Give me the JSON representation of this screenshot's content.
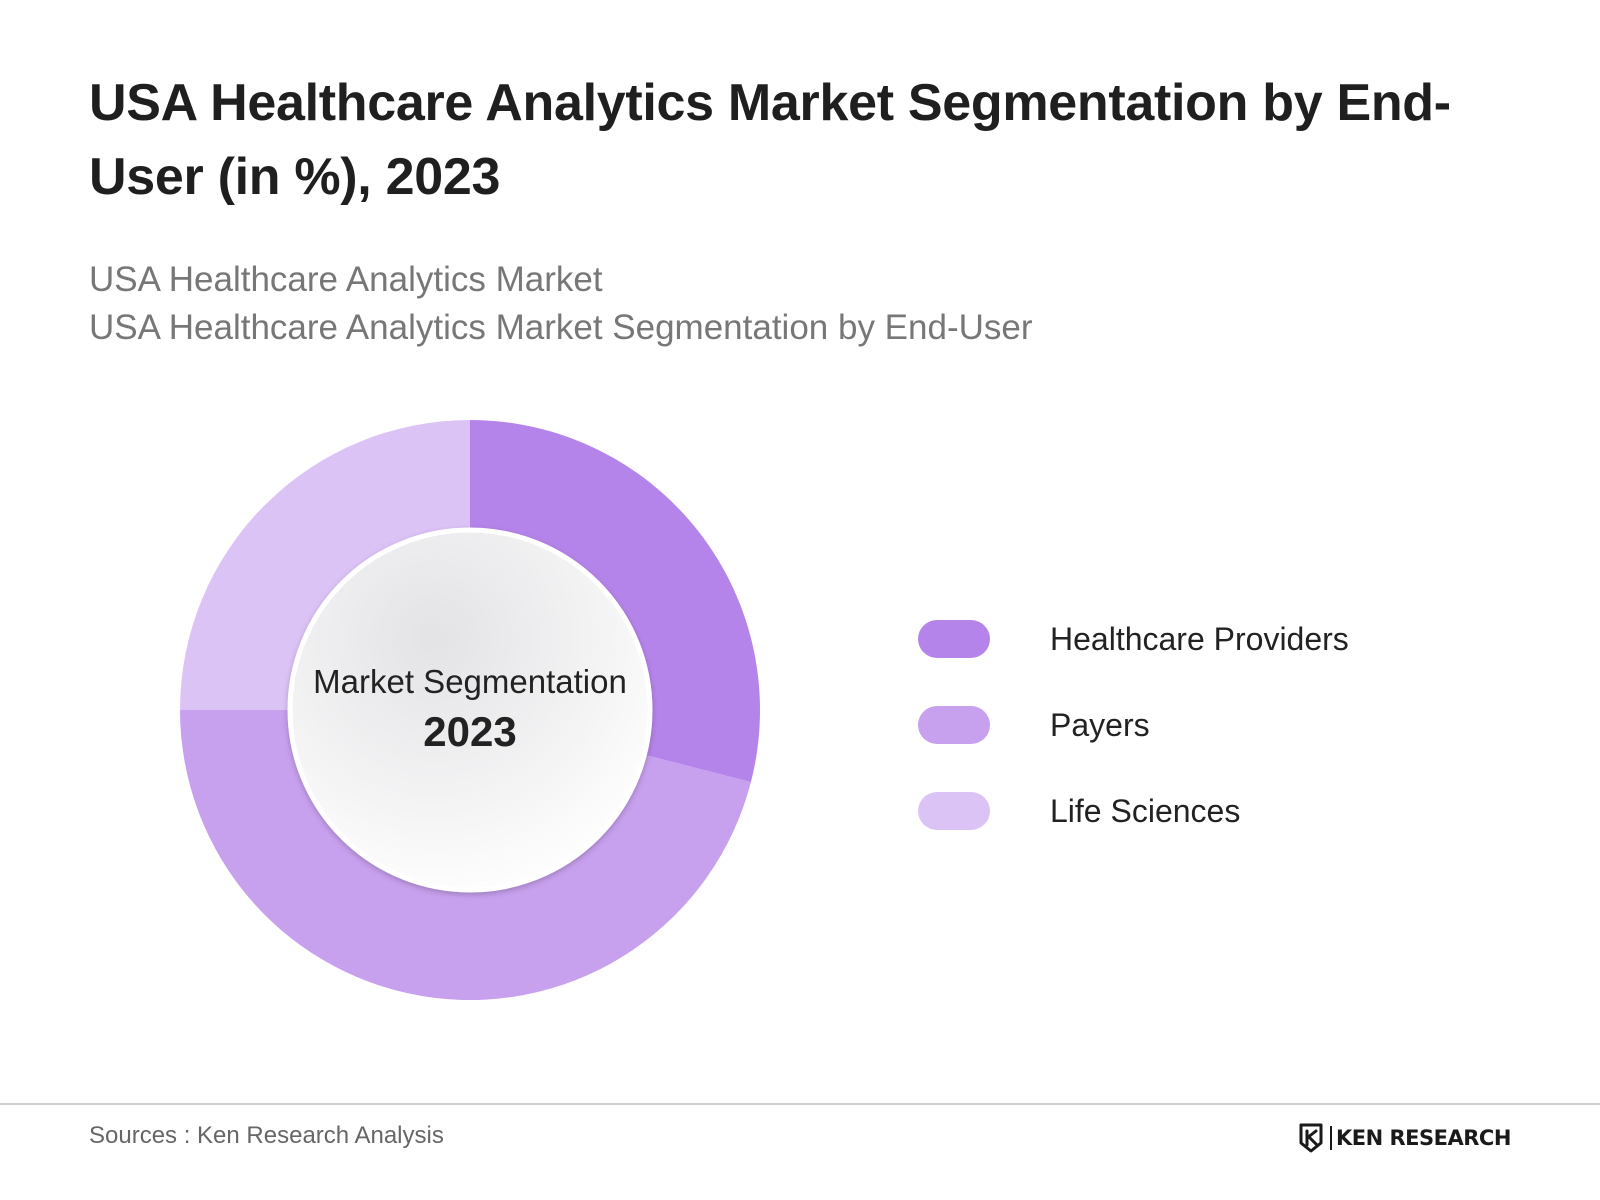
{
  "header": {
    "title": "USA Healthcare Analytics Market Segmentation by End-User (in %), 2023",
    "subtitle_line1": "USA Healthcare Analytics Market",
    "subtitle_line2": "USA Healthcare Analytics Market Segmentation by End-User"
  },
  "center_label": {
    "line1": "Market Segmentation",
    "line2": "2023"
  },
  "chart_data": {
    "type": "pie",
    "variant": "donut",
    "title": "USA Healthcare Analytics Market Segmentation by End-User (in %), 2023",
    "unit": "%",
    "categories": [
      "Healthcare Providers",
      "Payers",
      "Life Sciences"
    ],
    "values": [
      29,
      46,
      25
    ],
    "colors": [
      "#b584ea",
      "#c7a0ee",
      "#dcc3f6"
    ],
    "start_angle_deg": 0,
    "direction": "clockwise",
    "legend_position": "right",
    "data_labels_shown": false
  },
  "legend": {
    "items": [
      {
        "label": "Healthcare Providers",
        "color": "#b584ea"
      },
      {
        "label": "Payers",
        "color": "#c7a0ee"
      },
      {
        "label": "Life Sciences",
        "color": "#dcc3f6"
      }
    ]
  },
  "footer": {
    "source": "Sources : Ken Research Analysis",
    "brand": "KEN RESEARCH",
    "brand_logo_icon": "ken-research-logo-icon"
  }
}
